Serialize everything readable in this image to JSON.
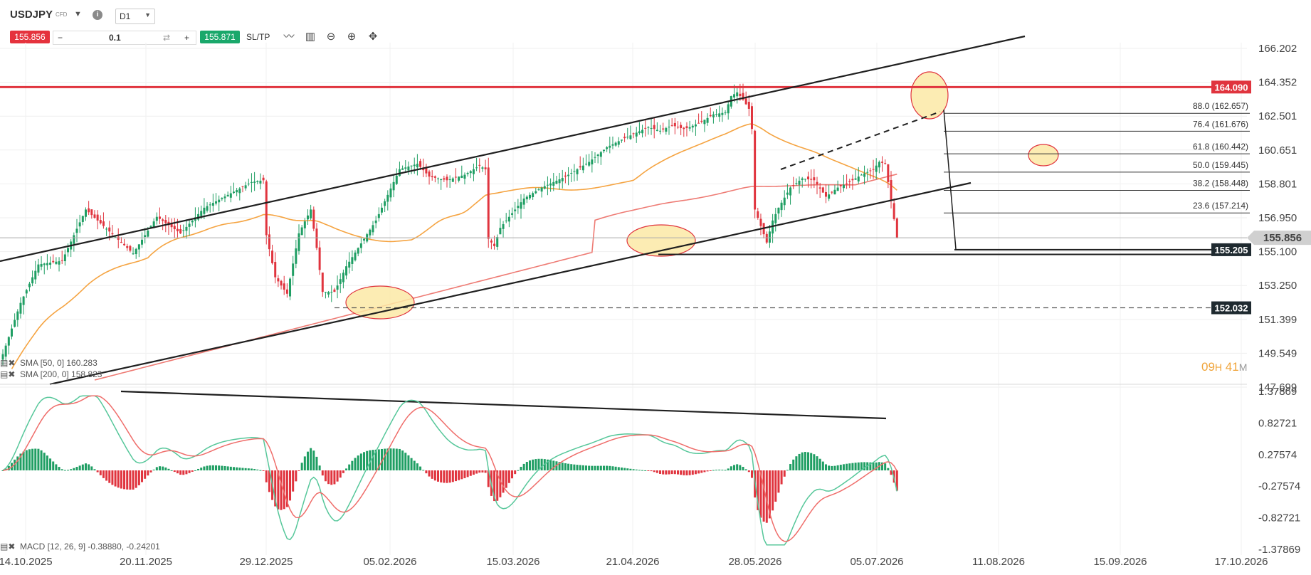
{
  "header": {
    "symbol": "USDJPY",
    "symbol_type": "CFD",
    "symbol_caret": "▼",
    "info_icon": "i",
    "timeframe": "D1",
    "timeframe_caret": "▼",
    "sell_price": "155.856",
    "quantity_minus": "−",
    "quantity": "0.1",
    "quantity_reset": "⇄",
    "quantity_plus": "+",
    "buy_price": "155.871",
    "sltp_label": "SL/TP",
    "tools": [
      "line-chart-icon",
      "candlestick-icon",
      "zoom-out-icon",
      "zoom-in-icon",
      "crosshair-icon"
    ],
    "tool_glyphs": [
      "〰",
      "▥",
      "⊖",
      "⊕",
      "✥"
    ]
  },
  "timer": {
    "hours": "09",
    "h": "H",
    "minutes": "41",
    "m": "M"
  },
  "colors": {
    "bull": "#1f9e63",
    "bear": "#e0343e",
    "sma50": "#f5a442",
    "sma200": "#ee7b74",
    "resistance": "#e0343e",
    "trend": "#1f1f1f",
    "macd_line": "#56c79a",
    "signal_line": "#ef6d6a",
    "highlight_fill": "#fbe9a6",
    "highlight_stroke": "#e0343e"
  },
  "chart_data": {
    "type": "candlestick",
    "title": "USDJPY D1",
    "y_axis": {
      "ticks": [
        "166.202",
        "164.352",
        "162.501",
        "160.651",
        "158.801",
        "156.950",
        "155.100",
        "153.250",
        "151.399",
        "149.549",
        "147.699"
      ],
      "ylim": [
        147.699,
        166.202
      ]
    },
    "x_axis": {
      "ticks": [
        "14.10.2025",
        "20.11.2025",
        "29.12.2025",
        "05.02.2026",
        "15.03.2026",
        "21.04.2026",
        "28.05.2026",
        "05.07.2026",
        "11.08.2026",
        "15.09.2026",
        "17.10.2026"
      ]
    },
    "price_keypoints": [
      [
        0,
        149.5
      ],
      [
        6,
        152.3
      ],
      [
        12,
        154.4
      ],
      [
        20,
        154.6
      ],
      [
        28,
        157.4
      ],
      [
        36,
        156.2
      ],
      [
        44,
        155.0
      ],
      [
        52,
        157.0
      ],
      [
        60,
        156.1
      ],
      [
        68,
        157.5
      ],
      [
        76,
        158.2
      ],
      [
        84,
        158.9
      ],
      [
        88,
        159.0
      ],
      [
        89,
        156.0
      ],
      [
        92,
        153.7
      ],
      [
        96,
        152.8
      ],
      [
        100,
        156.1
      ],
      [
        104,
        157.4
      ],
      [
        106,
        155.3
      ],
      [
        108,
        152.9
      ],
      [
        112,
        152.9
      ],
      [
        116,
        154.3
      ],
      [
        120,
        155.3
      ],
      [
        126,
        156.8
      ],
      [
        130,
        158.2
      ],
      [
        134,
        159.6
      ],
      [
        140,
        159.9
      ],
      [
        144,
        159.2
      ],
      [
        150,
        159.0
      ],
      [
        156,
        159.3
      ],
      [
        161,
        159.8
      ],
      [
        163,
        159.6
      ],
      [
        164,
        155.8
      ],
      [
        166,
        155.4
      ],
      [
        168,
        156.4
      ],
      [
        172,
        157.2
      ],
      [
        176,
        158.0
      ],
      [
        182,
        158.6
      ],
      [
        190,
        159.2
      ],
      [
        198,
        160.0
      ],
      [
        204,
        160.8
      ],
      [
        210,
        161.3
      ],
      [
        214,
        161.6
      ],
      [
        218,
        161.9
      ],
      [
        222,
        161.7
      ],
      [
        226,
        162.0
      ],
      [
        230,
        161.8
      ],
      [
        232,
        161.9
      ],
      [
        236,
        162.2
      ],
      [
        240,
        162.6
      ],
      [
        244,
        162.7
      ],
      [
        246,
        163.6
      ],
      [
        248,
        163.8
      ],
      [
        250,
        163.4
      ],
      [
        252,
        162.9
      ],
      [
        253,
        161.8
      ],
      [
        254,
        157.4
      ],
      [
        256,
        156.5
      ],
      [
        258,
        155.6
      ],
      [
        260,
        156.8
      ],
      [
        262,
        157.5
      ],
      [
        266,
        158.6
      ],
      [
        270,
        159.1
      ],
      [
        274,
        159.0
      ],
      [
        278,
        158.1
      ],
      [
        282,
        158.6
      ],
      [
        286,
        158.9
      ],
      [
        290,
        159.3
      ],
      [
        294,
        159.6
      ],
      [
        296,
        160.0
      ],
      [
        298,
        159.9
      ],
      [
        300,
        157.9
      ],
      [
        302,
        155.856
      ]
    ],
    "resistance_level": 164.09,
    "resistance_label": "164.090",
    "current_price": 155.856,
    "current_label": "155.856",
    "support_levels": [
      {
        "value": 155.205,
        "label": "155.205",
        "style": "solid"
      },
      {
        "value": 154.95,
        "label": "154.9??",
        "style": "solid"
      },
      {
        "value": 152.032,
        "label": "152.032",
        "style": "dashed"
      }
    ],
    "fibonacci": [
      {
        "value": 162.657,
        "label": "88.0 (162.657)"
      },
      {
        "value": 161.676,
        "label": "76.4 (161.676)"
      },
      {
        "value": 160.442,
        "label": "61.8 (160.442)"
      },
      {
        "value": 159.445,
        "label": "50.0 (159.445)"
      },
      {
        "value": 158.448,
        "label": "38.2 (158.448)"
      },
      {
        "value": 157.214,
        "label": "23.6 (157.214)"
      }
    ],
    "indicators": [
      {
        "name": "SMA [50, 0] 160.283",
        "color": "#f5a442"
      },
      {
        "name": "SMA [200, 0] 158.823",
        "color": "#ee7b74"
      }
    ],
    "macd": {
      "label": "MACD [12, 26, 9] -0.38880, -0.24201",
      "y_ticks": [
        "1.37869",
        "0.82721",
        "0.27574",
        "-0.27574",
        "-0.82721",
        "-1.37869"
      ],
      "ylim": [
        -1.37869,
        1.37869
      ]
    }
  }
}
